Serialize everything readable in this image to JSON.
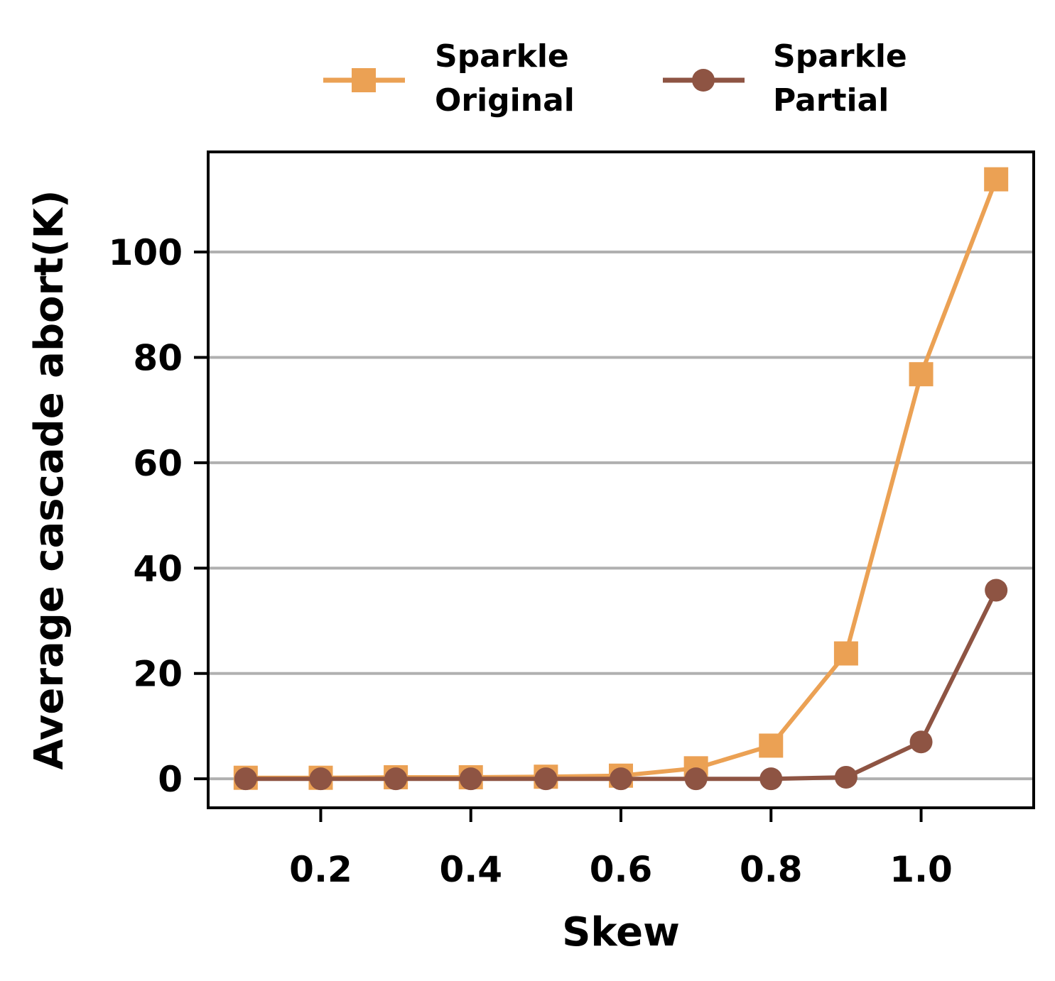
{
  "chart_data": {
    "type": "line",
    "xlabel": "Skew",
    "ylabel": "Average cascade abort(K)",
    "xlim": [
      0.05,
      1.15
    ],
    "ylim": [
      -5.5,
      119
    ],
    "xticks": [
      0.2,
      0.4,
      0.6,
      0.8,
      1.0
    ],
    "xtick_labels": [
      "0.2",
      "0.4",
      "0.6",
      "0.8",
      "1.0"
    ],
    "yticks": [
      0,
      20,
      40,
      60,
      80,
      100
    ],
    "ytick_labels": [
      "0",
      "20",
      "40",
      "60",
      "80",
      "100"
    ],
    "grid": "horizontal",
    "legend_position": "top-center",
    "x": [
      0.1,
      0.2,
      0.3,
      0.4,
      0.5,
      0.6,
      0.7,
      0.8,
      0.9,
      1.0,
      1.1
    ],
    "series": [
      {
        "name_lines": [
          "Sparkle",
          "Original"
        ],
        "color": "#eba154",
        "marker": "square",
        "values": [
          0.2,
          0.2,
          0.3,
          0.3,
          0.4,
          0.6,
          2.0,
          6.3,
          23.8,
          76.8,
          113.8
        ]
      },
      {
        "name_lines": [
          "Sparkle",
          "Partial"
        ],
        "color": "#8e5443",
        "marker": "circle",
        "values": [
          0.0,
          0.0,
          0.0,
          0.0,
          0.0,
          0.0,
          0.0,
          0.0,
          0.3,
          7.0,
          35.8
        ]
      }
    ]
  }
}
